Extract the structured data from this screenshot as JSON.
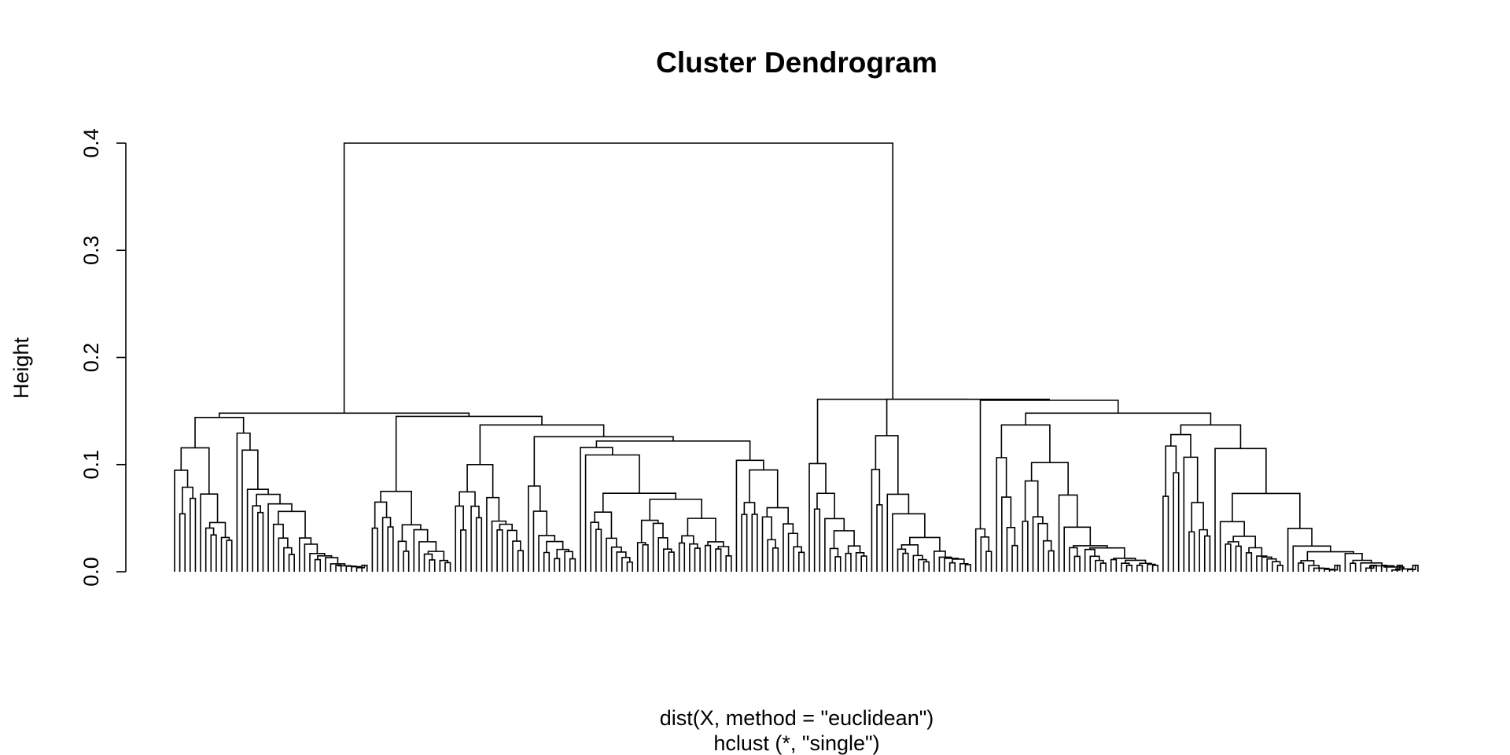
{
  "chart_data": {
    "type": "dendrogram",
    "title": "Cluster Dendrogram",
    "ylabel": "Height",
    "xlabel": "dist(X, method = \"euclidean\")",
    "sublabel": "hclust (*, \"single\")",
    "ylim": [
      0,
      0.4
    ],
    "yticks": [
      "0.0",
      "0.1",
      "0.2",
      "0.3",
      "0.4"
    ],
    "n_leaves": 240,
    "root_height": 0.4,
    "line_color": "#000000",
    "clusters": [
      {
        "name": "left",
        "height": 0.148,
        "children_heights": [
          0.144,
          0.145,
          0.137,
          0.126,
          0.122
        ],
        "leaves": 122
      },
      {
        "name": "right",
        "height": 0.161,
        "children_heights": [
          0.161,
          0.16,
          0.148,
          0.137,
          0.115
        ],
        "leaves": 118
      }
    ],
    "merge_heights": [
      0.4,
      0.161,
      0.161,
      0.16,
      0.148,
      0.148,
      0.145,
      0.144,
      0.137,
      0.137,
      0.137,
      0.133,
      0.127,
      0.126,
      0.126,
      0.125,
      0.125,
      0.122,
      0.116,
      0.115,
      0.115,
      0.113,
      0.111,
      0.105,
      0.104,
      0.1,
      0.1,
      0.098,
      0.098,
      0.097,
      0.093,
      0.092,
      0.091,
      0.09,
      0.089,
      0.088,
      0.087,
      0.086,
      0.085,
      0.084,
      0.083,
      0.082,
      0.081,
      0.08,
      0.079,
      0.078,
      0.077,
      0.076,
      0.075,
      0.074,
      0.073,
      0.072,
      0.071,
      0.07,
      0.069,
      0.068,
      0.067,
      0.066,
      0.065,
      0.064,
      0.063,
      0.062,
      0.061,
      0.06,
      0.059,
      0.058,
      0.057,
      0.056,
      0.055,
      0.054,
      0.053,
      0.052,
      0.051,
      0.05,
      0.049,
      0.048,
      0.047,
      0.046,
      0.045,
      0.044,
      0.043,
      0.042,
      0.041,
      0.04,
      0.039,
      0.038,
      0.037,
      0.036,
      0.035,
      0.034,
      0.033,
      0.032,
      0.031,
      0.03,
      0.029,
      0.028,
      0.027,
      0.026,
      0.025,
      0.024,
      0.023,
      0.022,
      0.021,
      0.02,
      0.019,
      0.018,
      0.017,
      0.016,
      0.015,
      0.014,
      0.013,
      0.012,
      0.011,
      0.01,
      0.009,
      0.008
    ]
  }
}
